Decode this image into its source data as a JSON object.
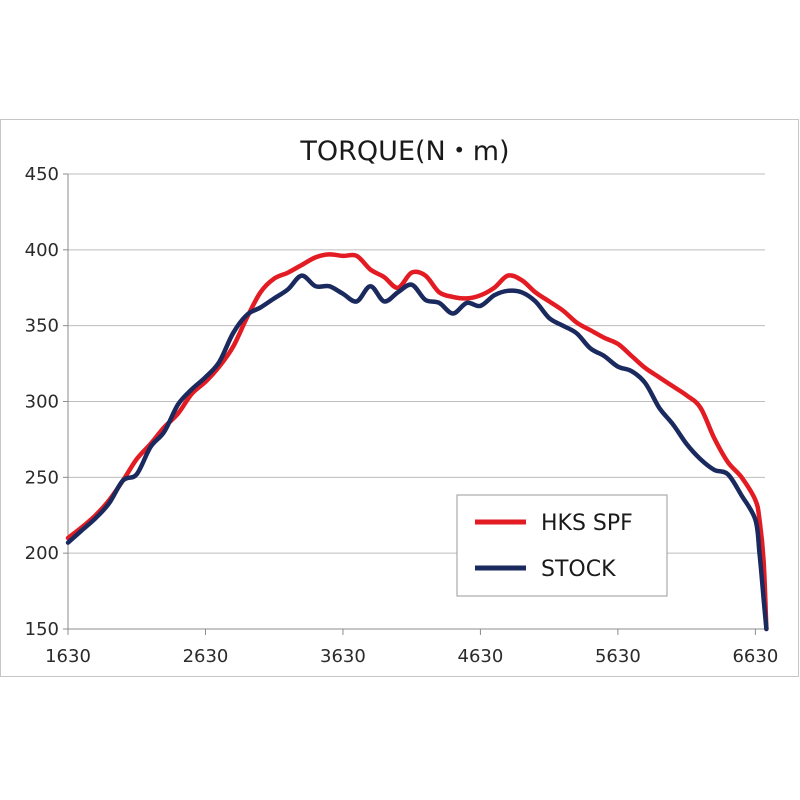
{
  "chart_data": {
    "type": "line",
    "title": "TORQUE(N・m)",
    "xlabel": "",
    "ylabel": "",
    "xlim": [
      1630,
      6700
    ],
    "ylim": [
      150,
      450
    ],
    "x_ticks": [
      1630,
      2630,
      3630,
      4630,
      5630,
      6630
    ],
    "y_ticks": [
      150,
      200,
      250,
      300,
      350,
      400,
      450
    ],
    "grid": "horizontal",
    "legend_position": "bottom-right",
    "series": [
      {
        "name": "HKS SPF",
        "color": "#e31b23",
        "x": [
          1630,
          1730,
          1830,
          1930,
          2030,
          2130,
          2230,
          2330,
          2430,
          2530,
          2630,
          2730,
          2830,
          2930,
          3030,
          3130,
          3230,
          3330,
          3430,
          3530,
          3630,
          3730,
          3830,
          3930,
          4030,
          4130,
          4230,
          4330,
          4430,
          4530,
          4630,
          4730,
          4830,
          4930,
          5030,
          5130,
          5230,
          5330,
          5430,
          5530,
          5630,
          5730,
          5830,
          5930,
          6030,
          6130,
          6230,
          6330,
          6430,
          6530,
          6630,
          6660,
          6690,
          6710
        ],
        "values": [
          210,
          217,
          225,
          235,
          248,
          262,
          272,
          283,
          292,
          305,
          313,
          323,
          336,
          355,
          372,
          381,
          385,
          390,
          395,
          397,
          396,
          396,
          387,
          382,
          375,
          385,
          383,
          372,
          369,
          368,
          370,
          375,
          383,
          380,
          372,
          366,
          360,
          352,
          347,
          342,
          338,
          330,
          322,
          316,
          310,
          304,
          296,
          276,
          260,
          250,
          235,
          222,
          195,
          150
        ]
      },
      {
        "name": "STOCK",
        "color": "#1b2a5e",
        "x": [
          1630,
          1730,
          1830,
          1930,
          2030,
          2130,
          2230,
          2330,
          2430,
          2530,
          2630,
          2730,
          2830,
          2930,
          3030,
          3130,
          3230,
          3330,
          3430,
          3530,
          3630,
          3730,
          3830,
          3930,
          4030,
          4130,
          4230,
          4330,
          4430,
          4530,
          4630,
          4730,
          4830,
          4930,
          5030,
          5130,
          5230,
          5330,
          5430,
          5530,
          5630,
          5730,
          5830,
          5930,
          6030,
          6130,
          6230,
          6330,
          6430,
          6530,
          6630,
          6660,
          6690,
          6710
        ],
        "values": [
          207,
          215,
          223,
          233,
          248,
          252,
          270,
          280,
          298,
          308,
          316,
          326,
          345,
          357,
          362,
          368,
          374,
          383,
          376,
          376,
          371,
          366,
          376,
          366,
          372,
          377,
          367,
          365,
          358,
          365,
          363,
          370,
          373,
          372,
          366,
          355,
          350,
          345,
          335,
          330,
          323,
          320,
          312,
          296,
          285,
          272,
          262,
          255,
          252,
          238,
          222,
          200,
          170,
          150
        ]
      }
    ]
  }
}
